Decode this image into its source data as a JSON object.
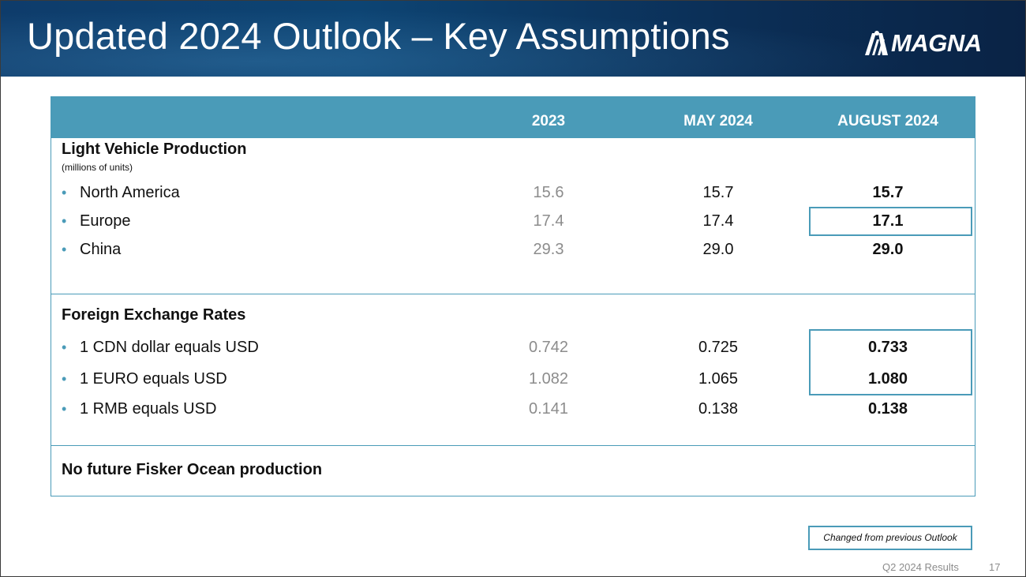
{
  "header": {
    "title": "Updated 2024 Outlook – Key Assumptions",
    "logo_text": "MAGNA"
  },
  "table": {
    "columns": [
      "",
      "2023",
      "MAY 2024",
      "AUGUST 2024"
    ],
    "sections": [
      {
        "title": "Light Vehicle Production",
        "subtitle": "(millions of units)",
        "rows": [
          {
            "label": "North America",
            "y2023": "15.6",
            "may2024": "15.7",
            "aug2024": "15.7",
            "changed": false
          },
          {
            "label": "Europe",
            "y2023": "17.4",
            "may2024": "17.4",
            "aug2024": "17.1",
            "changed": true
          },
          {
            "label": "China",
            "y2023": "29.3",
            "may2024": "29.0",
            "aug2024": "29.0",
            "changed": false
          }
        ]
      },
      {
        "title": "Foreign Exchange Rates",
        "rows": [
          {
            "label": "1 CDN dollar equals USD",
            "y2023": "0.742",
            "may2024": "0.725",
            "aug2024": "0.733",
            "changed": true
          },
          {
            "label": "1 EURO equals USD",
            "y2023": "1.082",
            "may2024": "1.065",
            "aug2024": "1.080",
            "changed": true
          },
          {
            "label": "1 RMB equals USD",
            "y2023": "0.141",
            "may2024": "0.138",
            "aug2024": "0.138",
            "changed": false
          }
        ]
      },
      {
        "title": "No future Fisker Ocean production"
      }
    ]
  },
  "legend": {
    "label": "Changed from previous Outlook"
  },
  "footer": {
    "label": "Q2 2024 Results",
    "page_number": "17"
  },
  "colors": {
    "accent": "#4a9bb8",
    "header_bg": "#0d3e6e",
    "prior_value": "#8c8c8c"
  },
  "icons": [
    "magna-logo-icon"
  ]
}
